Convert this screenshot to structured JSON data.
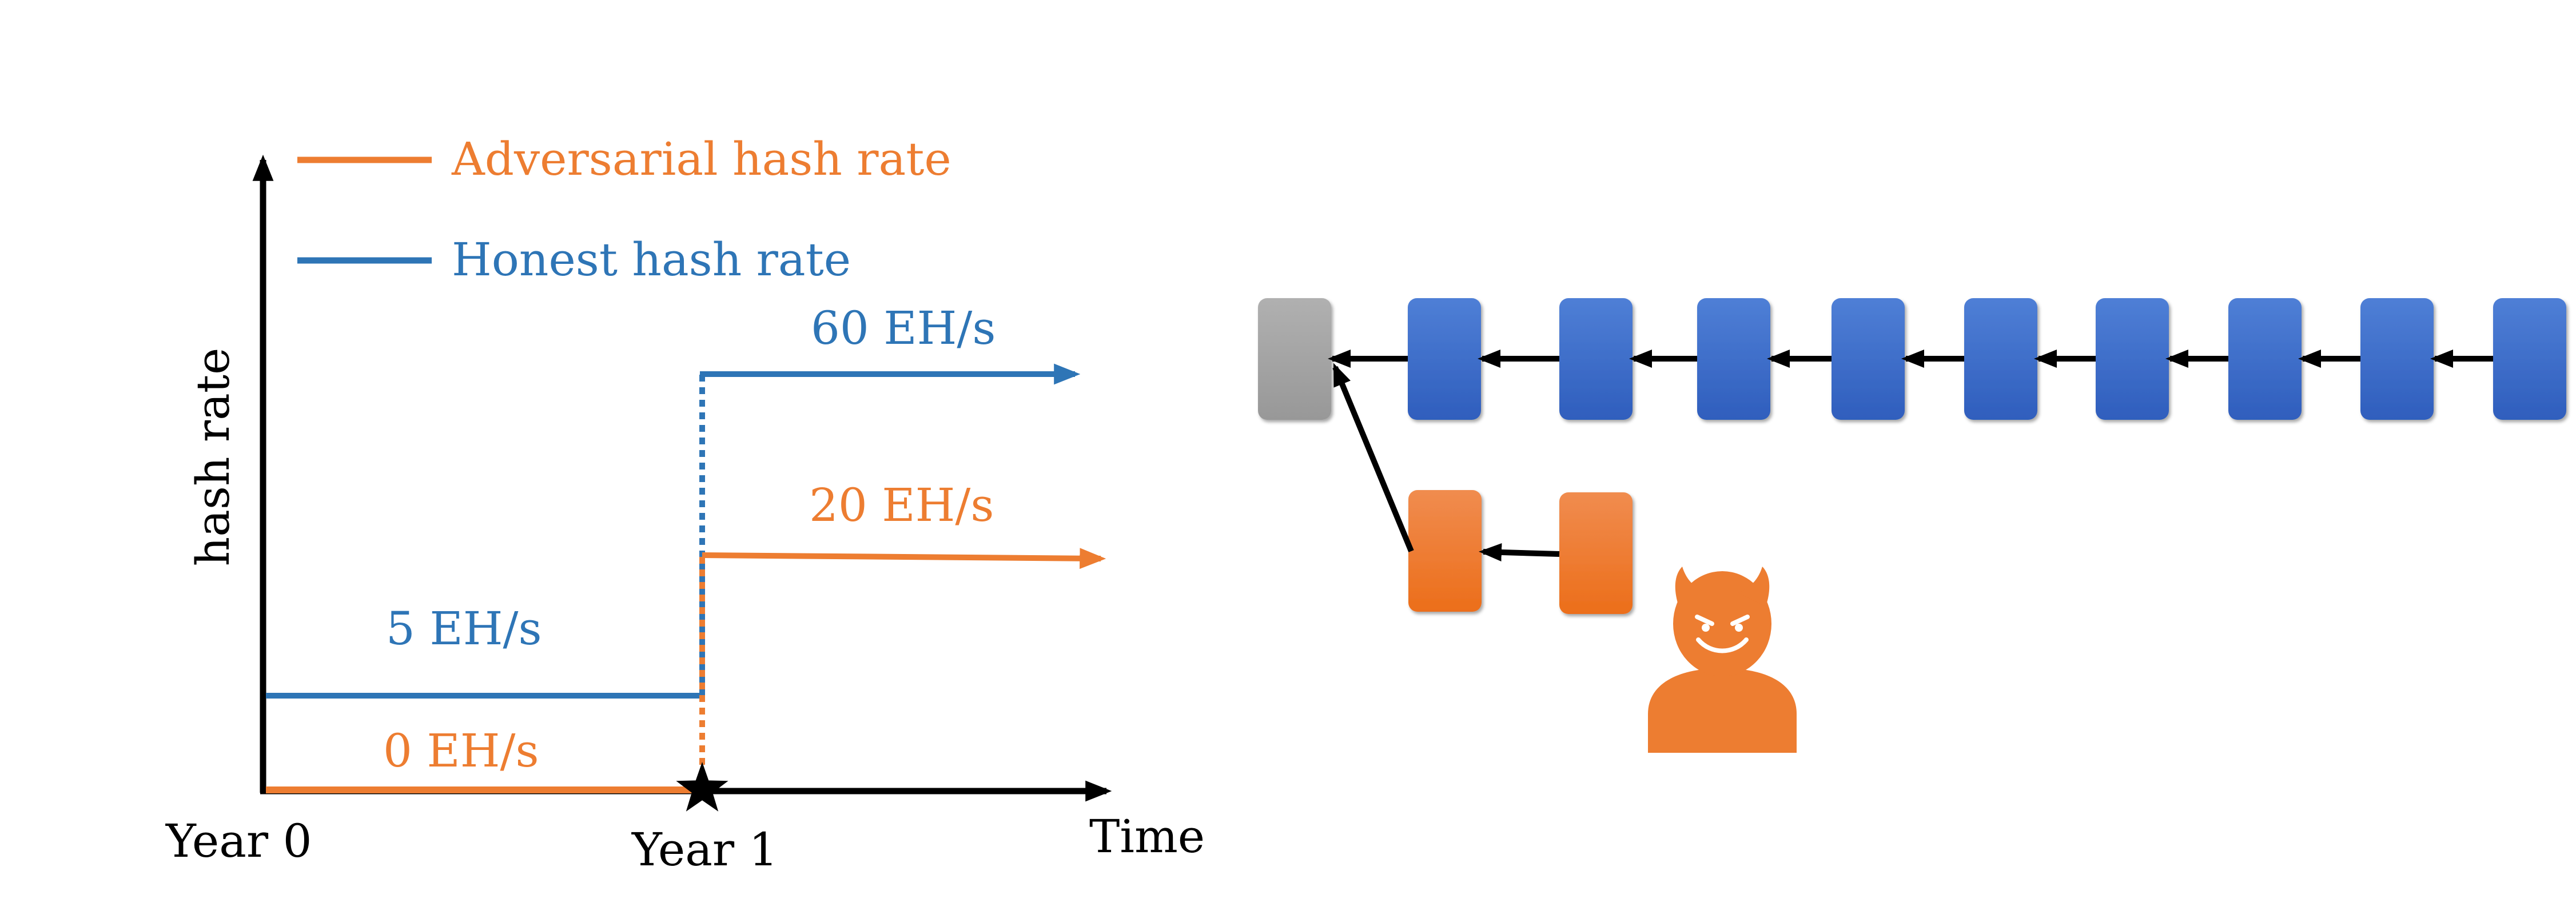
{
  "legend": {
    "adversarial_label": "Adversarial hash rate",
    "honest_label": "Honest hash rate"
  },
  "axes": {
    "y_label": "hash rate",
    "x_label": "Time",
    "tick_year0": "Year 0",
    "tick_year1": "Year 1"
  },
  "annotations": {
    "honest_before": "5 EH/s",
    "adversarial_before": "0 EH/s",
    "honest_after": "60 EH/s",
    "adversarial_after": "20 EH/s"
  },
  "chain": {
    "genesis_block_color": "#a6a6a6",
    "honest_block_color": "#3b68c4",
    "adversarial_block_color": "#ed7d31",
    "honest_block_count": 9,
    "adversarial_block_count": 2
  },
  "icons": {
    "adversary": "devil-icon",
    "event": "star-icon"
  },
  "colors": {
    "honest": "#2e75b6",
    "adversarial": "#ed7d31",
    "axis": "#000000"
  }
}
